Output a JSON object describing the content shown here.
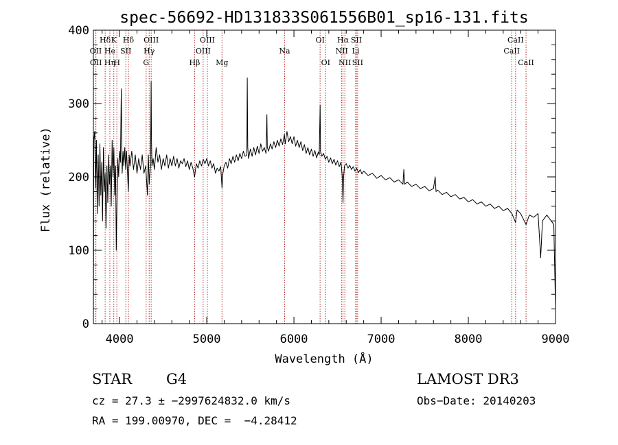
{
  "chart_data": {
    "type": "line",
    "title": "spec-56692-HD131833S061556B01_sp16-131.fits",
    "xlabel": "Wavelength (Å)",
    "ylabel": "Flux (relative)",
    "xlim": [
      3700,
      9000
    ],
    "ylim": [
      0,
      400
    ],
    "x_ticks": [
      4000,
      5000,
      6000,
      7000,
      8000,
      9000
    ],
    "y_ticks": [
      0,
      100,
      200,
      300,
      400
    ],
    "series": [
      {
        "name": "flux",
        "color": "#000000",
        "points": [
          [
            3700,
            0
          ],
          [
            3705,
            250
          ],
          [
            3715,
            262
          ],
          [
            3725,
            185
          ],
          [
            3735,
            250
          ],
          [
            3745,
            150
          ],
          [
            3755,
            230
          ],
          [
            3765,
            160
          ],
          [
            3775,
            245
          ],
          [
            3785,
            175
          ],
          [
            3795,
            220
          ],
          [
            3805,
            140
          ],
          [
            3815,
            240
          ],
          [
            3825,
            180
          ],
          [
            3835,
            205
          ],
          [
            3845,
            130
          ],
          [
            3855,
            215
          ],
          [
            3865,
            165
          ],
          [
            3875,
            230
          ],
          [
            3885,
            190
          ],
          [
            3895,
            215
          ],
          [
            3905,
            160
          ],
          [
            3915,
            250
          ],
          [
            3925,
            200
          ],
          [
            3935,
            240
          ],
          [
            3945,
            175
          ],
          [
            3955,
            215
          ],
          [
            3962,
            100
          ],
          [
            3970,
            160
          ],
          [
            3980,
            225
          ],
          [
            3990,
            200
          ],
          [
            4000,
            235
          ],
          [
            4010,
            220
          ],
          [
            4020,
            320
          ],
          [
            4030,
            205
          ],
          [
            4040,
            235
          ],
          [
            4050,
            215
          ],
          [
            4060,
            240
          ],
          [
            4070,
            210
          ],
          [
            4080,
            235
          ],
          [
            4090,
            210
          ],
          [
            4101,
            180
          ],
          [
            4110,
            230
          ],
          [
            4120,
            215
          ],
          [
            4140,
            235
          ],
          [
            4160,
            210
          ],
          [
            4180,
            230
          ],
          [
            4200,
            205
          ],
          [
            4220,
            225
          ],
          [
            4240,
            210
          ],
          [
            4260,
            230
          ],
          [
            4280,
            205
          ],
          [
            4300,
            215
          ],
          [
            4320,
            175
          ],
          [
            4330,
            230
          ],
          [
            4340,
            190
          ],
          [
            4345,
            200
          ],
          [
            4355,
            215
          ],
          [
            4362,
            330
          ],
          [
            4366,
            250
          ],
          [
            4372,
            215
          ],
          [
            4385,
            225
          ],
          [
            4400,
            210
          ],
          [
            4420,
            240
          ],
          [
            4440,
            220
          ],
          [
            4460,
            230
          ],
          [
            4480,
            210
          ],
          [
            4500,
            225
          ],
          [
            4520,
            215
          ],
          [
            4540,
            230
          ],
          [
            4560,
            212
          ],
          [
            4580,
            225
          ],
          [
            4600,
            215
          ],
          [
            4620,
            228
          ],
          [
            4640,
            215
          ],
          [
            4660,
            225
          ],
          [
            4680,
            212
          ],
          [
            4700,
            222
          ],
          [
            4720,
            218
          ],
          [
            4740,
            225
          ],
          [
            4760,
            214
          ],
          [
            4780,
            222
          ],
          [
            4800,
            210
          ],
          [
            4820,
            220
          ],
          [
            4840,
            212
          ],
          [
            4861,
            200
          ],
          [
            4880,
            218
          ],
          [
            4900,
            212
          ],
          [
            4920,
            222
          ],
          [
            4940,
            215
          ],
          [
            4960,
            224
          ],
          [
            4980,
            218
          ],
          [
            5000,
            225
          ],
          [
            5020,
            215
          ],
          [
            5040,
            222
          ],
          [
            5060,
            212
          ],
          [
            5080,
            218
          ],
          [
            5100,
            205
          ],
          [
            5120,
            212
          ],
          [
            5140,
            208
          ],
          [
            5160,
            214
          ],
          [
            5175,
            185
          ],
          [
            5185,
            205
          ],
          [
            5200,
            215
          ],
          [
            5220,
            220
          ],
          [
            5240,
            212
          ],
          [
            5260,
            225
          ],
          [
            5280,
            218
          ],
          [
            5300,
            228
          ],
          [
            5320,
            220
          ],
          [
            5340,
            230
          ],
          [
            5360,
            222
          ],
          [
            5380,
            232
          ],
          [
            5400,
            225
          ],
          [
            5420,
            235
          ],
          [
            5440,
            228
          ],
          [
            5460,
            230
          ],
          [
            5465,
            335
          ],
          [
            5470,
            240
          ],
          [
            5480,
            225
          ],
          [
            5500,
            238
          ],
          [
            5520,
            228
          ],
          [
            5540,
            240
          ],
          [
            5560,
            230
          ],
          [
            5580,
            242
          ],
          [
            5600,
            232
          ],
          [
            5620,
            245
          ],
          [
            5640,
            235
          ],
          [
            5660,
            240
          ],
          [
            5680,
            232
          ],
          [
            5690,
            285
          ],
          [
            5695,
            240
          ],
          [
            5710,
            235
          ],
          [
            5730,
            245
          ],
          [
            5750,
            238
          ],
          [
            5770,
            248
          ],
          [
            5790,
            240
          ],
          [
            5810,
            250
          ],
          [
            5830,
            242
          ],
          [
            5850,
            252
          ],
          [
            5870,
            244
          ],
          [
            5890,
            258
          ],
          [
            5900,
            245
          ],
          [
            5920,
            262
          ],
          [
            5940,
            248
          ],
          [
            5960,
            255
          ],
          [
            5980,
            245
          ],
          [
            6000,
            255
          ],
          [
            6020,
            242
          ],
          [
            6040,
            250
          ],
          [
            6060,
            240
          ],
          [
            6080,
            248
          ],
          [
            6100,
            236
          ],
          [
            6120,
            244
          ],
          [
            6140,
            232
          ],
          [
            6160,
            240
          ],
          [
            6180,
            230
          ],
          [
            6200,
            238
          ],
          [
            6220,
            228
          ],
          [
            6240,
            236
          ],
          [
            6260,
            226
          ],
          [
            6280,
            234
          ],
          [
            6290,
            230
          ],
          [
            6300,
            298
          ],
          [
            6305,
            235
          ],
          [
            6320,
            228
          ],
          [
            6340,
            232
          ],
          [
            6360,
            224
          ],
          [
            6380,
            228
          ],
          [
            6400,
            220
          ],
          [
            6420,
            226
          ],
          [
            6440,
            218
          ],
          [
            6460,
            224
          ],
          [
            6480,
            216
          ],
          [
            6500,
            222
          ],
          [
            6520,
            214
          ],
          [
            6540,
            220
          ],
          [
            6555,
            200
          ],
          [
            6563,
            165
          ],
          [
            6570,
            200
          ],
          [
            6580,
            215
          ],
          [
            6600,
            218
          ],
          [
            6620,
            212
          ],
          [
            6640,
            216
          ],
          [
            6660,
            210
          ],
          [
            6680,
            214
          ],
          [
            6700,
            208
          ],
          [
            6720,
            212
          ],
          [
            6740,
            206
          ],
          [
            6760,
            210
          ],
          [
            6780,
            204
          ],
          [
            6800,
            208
          ],
          [
            6850,
            202
          ],
          [
            6900,
            205
          ],
          [
            6950,
            198
          ],
          [
            7000,
            202
          ],
          [
            7050,
            196
          ],
          [
            7100,
            199
          ],
          [
            7150,
            193
          ],
          [
            7200,
            196
          ],
          [
            7250,
            190
          ],
          [
            7260,
            210
          ],
          [
            7270,
            190
          ],
          [
            7300,
            193
          ],
          [
            7350,
            187
          ],
          [
            7400,
            190
          ],
          [
            7450,
            184
          ],
          [
            7500,
            187
          ],
          [
            7550,
            181
          ],
          [
            7600,
            184
          ],
          [
            7620,
            200
          ],
          [
            7630,
            180
          ],
          [
            7650,
            182
          ],
          [
            7700,
            176
          ],
          [
            7750,
            179
          ],
          [
            7800,
            173
          ],
          [
            7850,
            176
          ],
          [
            7900,
            170
          ],
          [
            7950,
            172
          ],
          [
            8000,
            166
          ],
          [
            8050,
            169
          ],
          [
            8100,
            163
          ],
          [
            8150,
            166
          ],
          [
            8200,
            160
          ],
          [
            8250,
            163
          ],
          [
            8300,
            157
          ],
          [
            8350,
            160
          ],
          [
            8400,
            154
          ],
          [
            8450,
            157
          ],
          [
            8500,
            150
          ],
          [
            8542,
            138
          ],
          [
            8560,
            155
          ],
          [
            8600,
            150
          ],
          [
            8662,
            135
          ],
          [
            8700,
            148
          ],
          [
            8750,
            145
          ],
          [
            8800,
            150
          ],
          [
            8830,
            90
          ],
          [
            8850,
            140
          ],
          [
            8900,
            148
          ],
          [
            8950,
            140
          ],
          [
            8980,
            135
          ],
          [
            9000,
            20
          ]
        ]
      }
    ],
    "line_markers": [
      {
        "label": "Hδ",
        "x": 3835,
        "row": 1
      },
      {
        "label": "OII",
        "x": 3727,
        "row": 2
      },
      {
        "label": "OII",
        "x": 3729,
        "row": 3
      },
      {
        "label": "He",
        "x": 3889,
        "row": 2
      },
      {
        "label": "Hη",
        "x": 3889,
        "row": 3
      },
      {
        "label": "K",
        "x": 3934,
        "row": 1
      },
      {
        "label": "H",
        "x": 3969,
        "row": 3
      },
      {
        "label": "SII",
        "x": 4072,
        "row": 2
      },
      {
        "label": "Hδ",
        "x": 4102,
        "row": 1
      },
      {
        "label": "OIII",
        "x": 4363,
        "row": 1
      },
      {
        "label": "Hγ",
        "x": 4340,
        "row": 2
      },
      {
        "label": "G",
        "x": 4305,
        "row": 3
      },
      {
        "label": "Hβ",
        "x": 4861,
        "row": 3
      },
      {
        "label": "OIII",
        "x": 5007,
        "row": 1
      },
      {
        "label": "OIII",
        "x": 4959,
        "row": 2
      },
      {
        "label": "Mg",
        "x": 5175,
        "row": 3
      },
      {
        "label": "Na",
        "x": 5893,
        "row": 2
      },
      {
        "label": "OI",
        "x": 6300,
        "row": 1
      },
      {
        "label": "OI",
        "x": 6364,
        "row": 3
      },
      {
        "label": "Hα",
        "x": 6563,
        "row": 1
      },
      {
        "label": "NII",
        "x": 6548,
        "row": 2
      },
      {
        "label": "NII",
        "x": 6584,
        "row": 3
      },
      {
        "label": "SII",
        "x": 6716,
        "row": 1
      },
      {
        "label": "Li",
        "x": 6708,
        "row": 2
      },
      {
        "label": "SII",
        "x": 6731,
        "row": 3
      },
      {
        "label": "CaII",
        "x": 8542,
        "row": 1
      },
      {
        "label": "CaII",
        "x": 8498,
        "row": 2
      },
      {
        "label": "CaII",
        "x": 8662,
        "row": 3
      }
    ]
  },
  "info": {
    "class_label": "STAR",
    "subclass_label": "G4",
    "survey_label": "LAMOST DR3",
    "cz_text": "cz = 27.3 ± −2997624832.0 km/s",
    "obs_date_text": "Obs−Date: 20140203",
    "radec_text": "RA = 199.00970, DEC =  −4.28412"
  },
  "colors": {
    "marker": "#b03030",
    "axis": "#000000",
    "spectrum": "#000000"
  }
}
